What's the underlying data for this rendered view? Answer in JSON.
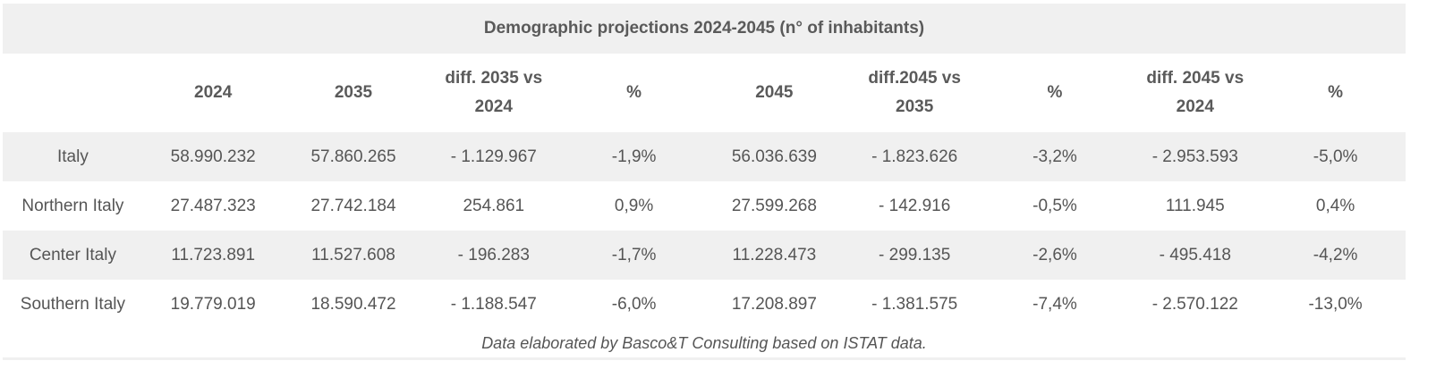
{
  "table": {
    "title": "Demographic projections 2024-2045 (n° of inhabitants)",
    "headers": [
      "",
      "2024",
      "2035",
      "diff. 2035 vs 2024",
      "%",
      "2045",
      "diff.2045 vs 2035",
      "%",
      "diff. 2045 vs 2024",
      "%"
    ],
    "rows": [
      [
        "Italy",
        "58.990.232",
        "57.860.265",
        "- 1.129.967",
        "-1,9%",
        "56.036.639",
        "- 1.823.626",
        "-3,2%",
        "- 2.953.593",
        "-5,0%"
      ],
      [
        "Northern Italy",
        "27.487.323",
        "27.742.184",
        "254.861",
        "0,9%",
        "27.599.268",
        "- 142.916",
        "-0,5%",
        "111.945",
        "0,4%"
      ],
      [
        "Center Italy",
        "11.723.891",
        "11.527.608",
        "- 196.283",
        "-1,7%",
        "11.228.473",
        "- 299.135",
        "-2,6%",
        "- 495.418",
        "-4,2%"
      ],
      [
        "Southern Italy",
        "19.779.019",
        "18.590.472",
        "- 1.188.547",
        "-6,0%",
        "17.208.897",
        "- 1.381.575",
        "-7,4%",
        "- 2.570.122",
        "-13,0%"
      ]
    ],
    "caption": "Data elaborated by Basco&T Consulting based on ISTAT data."
  },
  "colors": {
    "stripe": "#f0f0f0",
    "text": "#555555"
  }
}
